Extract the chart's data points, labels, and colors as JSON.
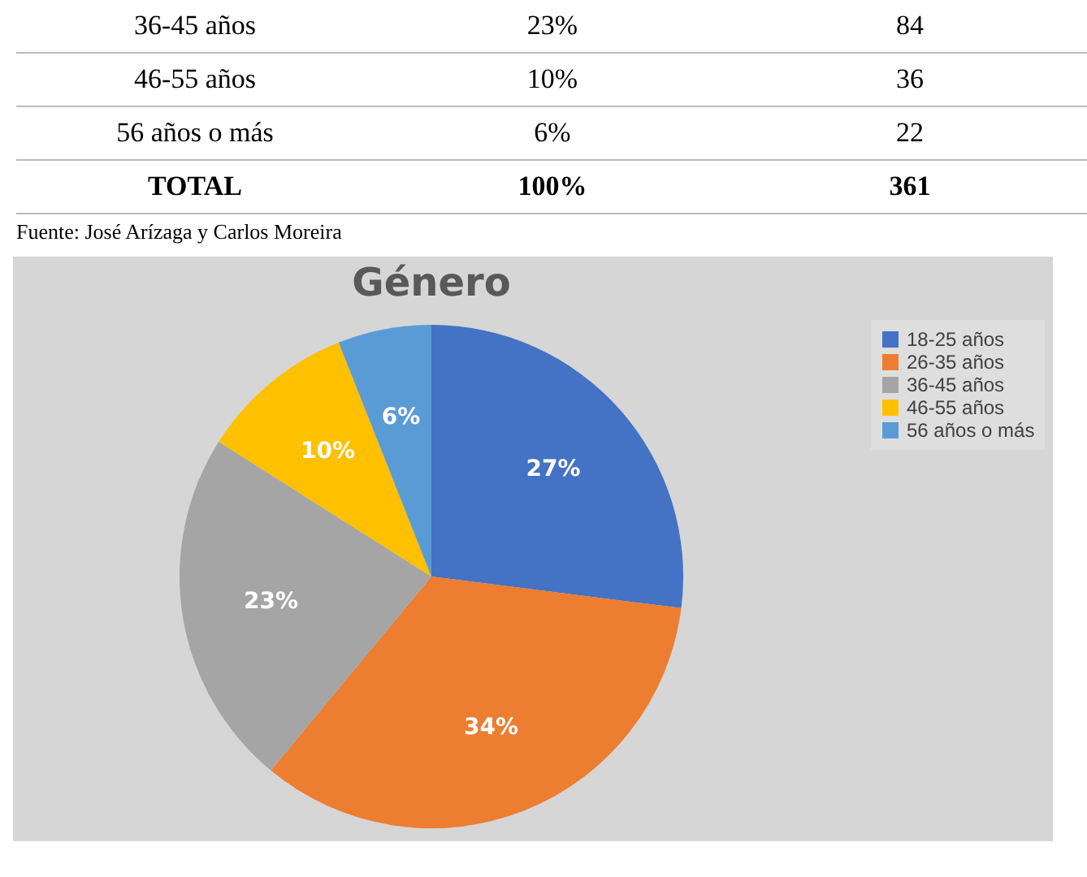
{
  "chart_data": [
    {
      "type": "other",
      "annotations": [
        "36-45 años",
        "23%",
        "84",
        "46-55 años",
        "10%",
        "36",
        "56 años o más",
        "6%",
        "22",
        "TOTAL",
        "100%",
        "361",
        "Fuente: José Arízaga y Carlos Moreira"
      ]
    },
    {
      "type": "pie",
      "title": "Género",
      "categories": [
        "18-25 años",
        "26-35 años",
        "36-45 años",
        "46-55 años",
        "56 años o más"
      ],
      "values": [
        27,
        34,
        23,
        10,
        6
      ],
      "colors": [
        "#4472c4",
        "#ed7d31",
        "#a5a5a5",
        "#ffc000",
        "#5b9bd5"
      ],
      "value_labels": [
        "27%",
        "34%",
        "23%",
        "10%",
        "6%"
      ],
      "legend": "right"
    }
  ]
}
